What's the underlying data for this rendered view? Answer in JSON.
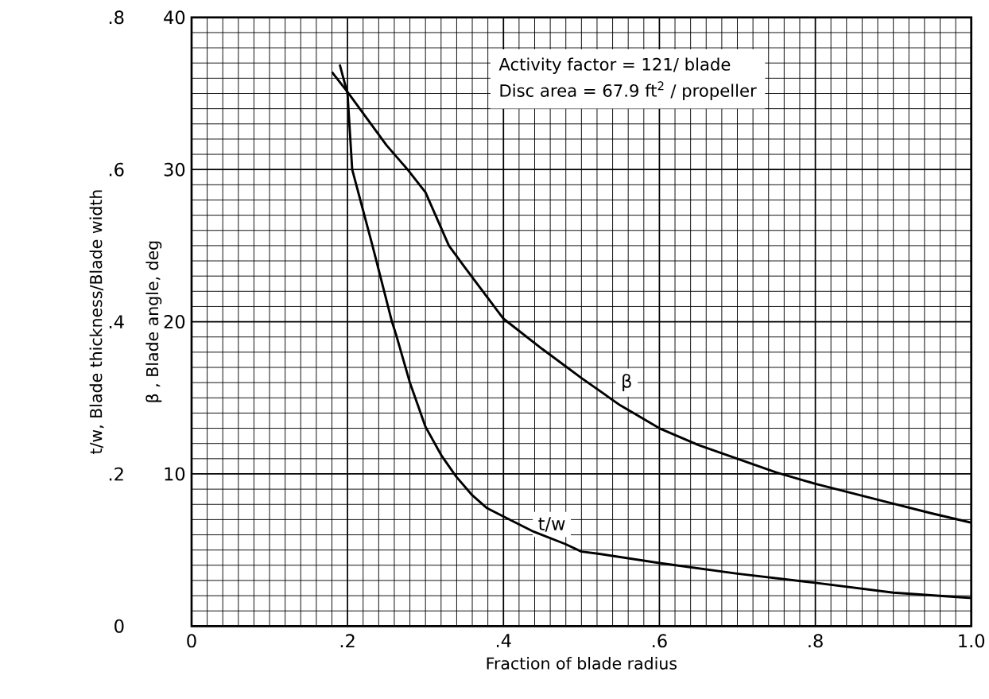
{
  "chart_data": {
    "type": "line",
    "xlabel": "Fraction of blade radius",
    "ylabel": "β , Blade angle, deg",
    "y2label": "t/w, Blade thickness/Blade width",
    "annotations": [
      "Activity factor = 121/ blade",
      "Disc area = 67.9 ft$^{2}$ / propeller"
    ],
    "xlim": [
      0,
      1.0
    ],
    "xticks": [
      0,
      {
        "value": 0.2,
        "label": ".2"
      },
      {
        "value": 0.4,
        "label": ".4"
      },
      {
        "value": 0.6,
        "label": ".6"
      },
      {
        "value": 0.8,
        "label": ".8"
      },
      {
        "value": 1.0,
        "label": "1.0"
      }
    ],
    "ylim": [
      0,
      40
    ],
    "yticks": [
      {
        "value": 0,
        "label": null
      },
      10,
      20,
      30,
      40
    ],
    "y2lim": [
      0,
      0.8
    ],
    "y2ticks": [
      0,
      {
        "value": 0.2,
        "label": ".2"
      },
      {
        "value": 0.4,
        "label": ".4"
      },
      {
        "value": 0.6,
        "label": ".6"
      },
      {
        "value": 0.8,
        "label": ".8"
      }
    ],
    "grid": true,
    "series": [
      {
        "name": "β",
        "color": "#000000",
        "x": [
          0.18,
          0.2,
          0.25,
          0.277,
          0.3,
          0.33,
          0.35,
          0.4,
          0.45,
          0.5,
          0.55,
          0.6,
          0.65,
          0.7,
          0.75,
          0.8,
          0.85,
          0.9,
          0.95,
          1.0
        ],
        "values": [
          36.4,
          35.1,
          31.6,
          30.0,
          28.5,
          25.0,
          23.6,
          20.2,
          18.2,
          16.3,
          14.5,
          13.0,
          11.9,
          11.0,
          10.1,
          9.35,
          8.7,
          8.05,
          7.4,
          6.8
        ]
      },
      {
        "name": "t/w",
        "color": "#000000",
        "axis": "y2",
        "x": [
          0.19,
          0.2,
          0.206,
          0.232,
          0.257,
          0.262,
          0.28,
          0.3,
          0.32,
          0.339,
          0.359,
          0.379,
          0.4,
          0.439,
          0.479,
          0.5,
          0.523,
          0.6,
          0.7,
          0.8,
          0.9,
          1.0
        ],
        "values": [
          0.738,
          0.7,
          0.6,
          0.5,
          0.4,
          0.384,
          0.32,
          0.262,
          0.225,
          0.197,
          0.173,
          0.155,
          0.144,
          0.124,
          0.108,
          0.098,
          0.095,
          0.083,
          0.069,
          0.057,
          0.044,
          0.037
        ]
      }
    ]
  }
}
